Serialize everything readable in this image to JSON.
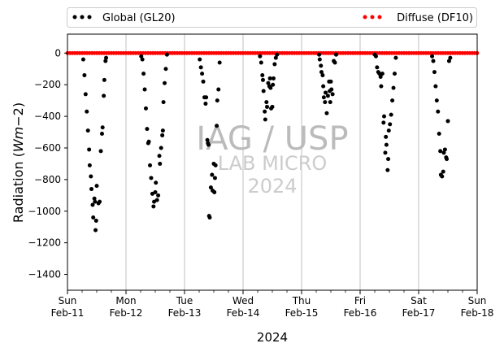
{
  "chart_data": {
    "type": "scatter",
    "title": "",
    "xlabel": "2024",
    "ylabel_main": "Radiation (",
    "ylabel_italic": "Wm",
    "ylabel_suffix": "−2)",
    "ylim": [
      -1500,
      120
    ],
    "yticks": [
      0,
      -200,
      -400,
      -600,
      -800,
      -1000,
      -1200,
      -1400
    ],
    "ytick_labels": [
      "0",
      "−200",
      "−400",
      "−600",
      "−800",
      "−1000",
      "−1200",
      "−1400"
    ],
    "xlim_days": [
      11,
      18
    ],
    "x_ticks": [
      {
        "day": 11,
        "weekday": "Sun",
        "date": "Feb-11"
      },
      {
        "day": 12,
        "weekday": "Mon",
        "date": "Feb-12"
      },
      {
        "day": 13,
        "weekday": "Tue",
        "date": "Feb-13"
      },
      {
        "day": 14,
        "weekday": "Wed",
        "date": "Feb-14"
      },
      {
        "day": 15,
        "weekday": "Thu",
        "date": "Feb-15"
      },
      {
        "day": 16,
        "weekday": "Fri",
        "date": "Feb-16"
      },
      {
        "day": 17,
        "weekday": "Sat",
        "date": "Feb-17"
      },
      {
        "day": 18,
        "weekday": "Sun",
        "date": "Feb-18"
      }
    ],
    "grid": "vertical at day boundaries",
    "legend_position": "above plot, top",
    "series": [
      {
        "name": "Global (GL20)",
        "color": "#000000",
        "marker": "dot",
        "points": [
          [
            11.27,
            -40
          ],
          [
            11.29,
            -140
          ],
          [
            11.31,
            -260
          ],
          [
            11.33,
            -370
          ],
          [
            11.35,
            -490
          ],
          [
            11.37,
            -610
          ],
          [
            11.38,
            -710
          ],
          [
            11.4,
            -780
          ],
          [
            11.41,
            -860
          ],
          [
            11.43,
            -960
          ],
          [
            11.44,
            -1040
          ],
          [
            11.46,
            -920
          ],
          [
            11.47,
            -940
          ],
          [
            11.48,
            -1120
          ],
          [
            11.49,
            -1060
          ],
          [
            11.5,
            -840
          ],
          [
            11.53,
            -950
          ],
          [
            11.55,
            -940
          ],
          [
            11.57,
            -620
          ],
          [
            11.59,
            -510
          ],
          [
            11.6,
            -470
          ],
          [
            11.62,
            -270
          ],
          [
            11.63,
            -170
          ],
          [
            11.65,
            -50
          ],
          [
            11.66,
            -30
          ],
          [
            12.26,
            -20
          ],
          [
            12.28,
            -40
          ],
          [
            12.3,
            -130
          ],
          [
            12.32,
            -230
          ],
          [
            12.34,
            -350
          ],
          [
            12.36,
            -480
          ],
          [
            12.38,
            -570
          ],
          [
            12.39,
            -560
          ],
          [
            12.41,
            -710
          ],
          [
            12.43,
            -790
          ],
          [
            12.45,
            -890
          ],
          [
            12.47,
            -970
          ],
          [
            12.48,
            -940
          ],
          [
            12.5,
            -880
          ],
          [
            12.51,
            -820
          ],
          [
            12.53,
            -930
          ],
          [
            12.55,
            -900
          ],
          [
            12.57,
            -650
          ],
          [
            12.58,
            -700
          ],
          [
            12.6,
            -600
          ],
          [
            12.62,
            -520
          ],
          [
            12.63,
            -490
          ],
          [
            12.64,
            -310
          ],
          [
            12.66,
            -190
          ],
          [
            12.68,
            -100
          ],
          [
            12.7,
            -10
          ],
          [
            13.26,
            -40
          ],
          [
            13.28,
            -90
          ],
          [
            13.3,
            -130
          ],
          [
            13.32,
            -180
          ],
          [
            13.34,
            -280
          ],
          [
            13.36,
            -320
          ],
          [
            13.37,
            -280
          ],
          [
            13.39,
            -550
          ],
          [
            13.4,
            -570
          ],
          [
            13.41,
            -580
          ],
          [
            13.42,
            -1030
          ],
          [
            13.43,
            -1040
          ],
          [
            13.45,
            -850
          ],
          [
            13.47,
            -770
          ],
          [
            13.48,
            -870
          ],
          [
            13.5,
            -700
          ],
          [
            13.51,
            -880
          ],
          [
            13.52,
            -790
          ],
          [
            13.53,
            -710
          ],
          [
            13.55,
            -460
          ],
          [
            13.56,
            -300
          ],
          [
            13.58,
            -230
          ],
          [
            13.6,
            -60
          ],
          [
            14.29,
            -20
          ],
          [
            14.31,
            -60
          ],
          [
            14.33,
            -140
          ],
          [
            14.34,
            -170
          ],
          [
            14.35,
            -240
          ],
          [
            14.37,
            -370
          ],
          [
            14.38,
            -420
          ],
          [
            14.4,
            -310
          ],
          [
            14.41,
            -340
          ],
          [
            14.43,
            -190
          ],
          [
            14.45,
            -210
          ],
          [
            14.46,
            -160
          ],
          [
            14.47,
            -220
          ],
          [
            14.48,
            -350
          ],
          [
            14.5,
            -340
          ],
          [
            14.51,
            -200
          ],
          [
            14.52,
            -160
          ],
          [
            14.54,
            -70
          ],
          [
            14.56,
            -30
          ],
          [
            14.58,
            -10
          ],
          [
            15.3,
            -10
          ],
          [
            15.31,
            -40
          ],
          [
            15.33,
            -80
          ],
          [
            15.34,
            -120
          ],
          [
            15.36,
            -140
          ],
          [
            15.37,
            -210
          ],
          [
            15.38,
            -280
          ],
          [
            15.4,
            -310
          ],
          [
            15.41,
            -250
          ],
          [
            15.43,
            -380
          ],
          [
            15.45,
            -270
          ],
          [
            15.47,
            -180
          ],
          [
            15.48,
            -240
          ],
          [
            15.49,
            -310
          ],
          [
            15.5,
            -180
          ],
          [
            15.51,
            -230
          ],
          [
            15.53,
            -260
          ],
          [
            15.55,
            -50
          ],
          [
            15.57,
            -60
          ],
          [
            15.59,
            -10
          ],
          [
            16.25,
            -10
          ],
          [
            16.27,
            -20
          ],
          [
            16.29,
            -90
          ],
          [
            16.31,
            -120
          ],
          [
            16.33,
            -130
          ],
          [
            16.35,
            -150
          ],
          [
            16.36,
            -210
          ],
          [
            16.38,
            -130
          ],
          [
            16.4,
            -440
          ],
          [
            16.41,
            -400
          ],
          [
            16.43,
            -630
          ],
          [
            16.44,
            -530
          ],
          [
            16.45,
            -580
          ],
          [
            16.47,
            -740
          ],
          [
            16.48,
            -670
          ],
          [
            16.49,
            -490
          ],
          [
            16.51,
            -450
          ],
          [
            16.53,
            -390
          ],
          [
            16.55,
            -300
          ],
          [
            16.57,
            -220
          ],
          [
            16.59,
            -130
          ],
          [
            16.61,
            -30
          ],
          [
            17.23,
            -20
          ],
          [
            17.25,
            -50
          ],
          [
            17.27,
            -120
          ],
          [
            17.29,
            -210
          ],
          [
            17.31,
            -300
          ],
          [
            17.33,
            -370
          ],
          [
            17.35,
            -510
          ],
          [
            17.37,
            -620
          ],
          [
            17.38,
            -770
          ],
          [
            17.4,
            -780
          ],
          [
            17.42,
            -750
          ],
          [
            17.43,
            -630
          ],
          [
            17.45,
            -610
          ],
          [
            17.47,
            -660
          ],
          [
            17.48,
            -670
          ],
          [
            17.5,
            -430
          ],
          [
            17.52,
            -50
          ],
          [
            17.54,
            -30
          ]
        ]
      },
      {
        "name": "Diffuse (DF10)",
        "color": "#ff0000",
        "marker": "dot",
        "x_start_day": 11.0,
        "x_end_day": 18.0,
        "y_value": 0
      }
    ],
    "watermark": {
      "line1": "IAG / USP",
      "line2": "LAB MICRO",
      "line3": "2024"
    }
  }
}
